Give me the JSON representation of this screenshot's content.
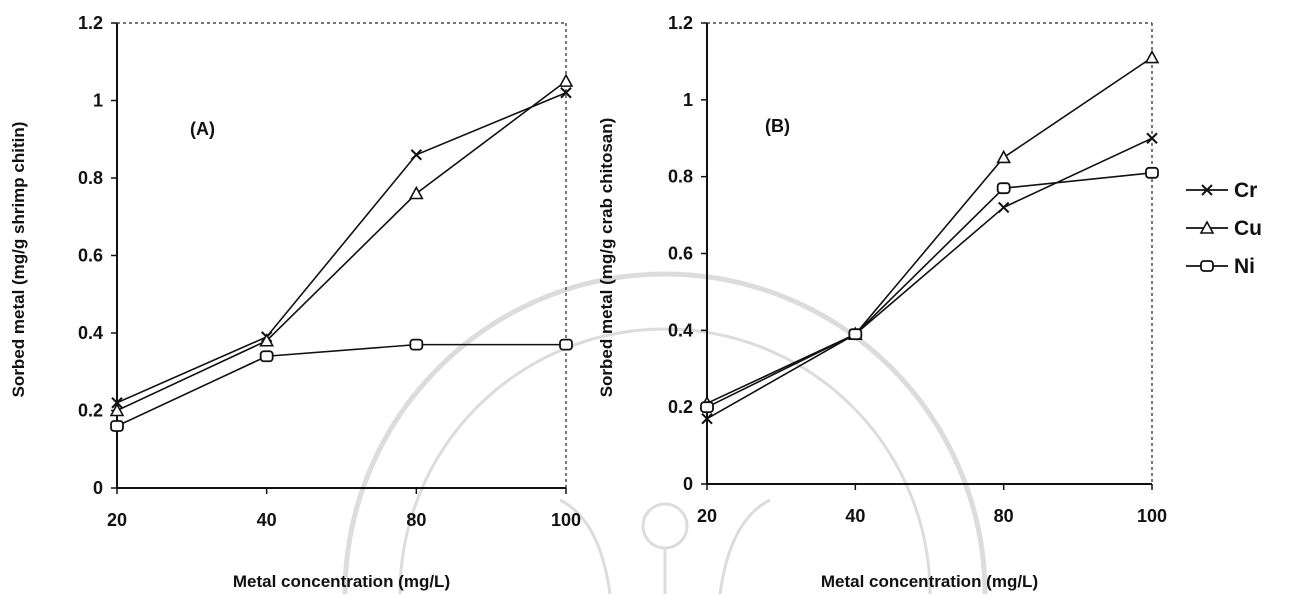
{
  "chart_data": [
    {
      "type": "line",
      "panel_label": "(A)",
      "xlabel": "Metal concentration (mg/L)",
      "ylabel": "Sorbed metal (mg/g shrimp chitin)",
      "categories": [
        "20",
        "40",
        "80",
        "100"
      ],
      "ylim": [
        0,
        1.2
      ],
      "yticks": [
        "0",
        "0.2",
        "0.4",
        "0.6",
        "0.8",
        "1",
        "1.2"
      ],
      "grid": false,
      "series": [
        {
          "name": "Cr",
          "marker": "x",
          "values": [
            0.22,
            0.39,
            0.86,
            1.02
          ]
        },
        {
          "name": "Cu",
          "marker": "triangle",
          "values": [
            0.2,
            0.38,
            0.76,
            1.05
          ]
        },
        {
          "name": "Ni",
          "marker": "square",
          "values": [
            0.16,
            0.34,
            0.37,
            0.37
          ]
        }
      ]
    },
    {
      "type": "line",
      "panel_label": "(B)",
      "xlabel": "Metal concentration (mg/L)",
      "ylabel": "Sorbed metal (mg/g crab chitosan)",
      "categories": [
        "20",
        "40",
        "80",
        "100"
      ],
      "ylim": [
        0,
        1.2
      ],
      "yticks": [
        "0",
        "0.2",
        "0.4",
        "0.6",
        "0.8",
        "1",
        "1.2"
      ],
      "grid": false,
      "series": [
        {
          "name": "Cr",
          "marker": "x",
          "values": [
            0.17,
            0.39,
            0.72,
            0.9
          ]
        },
        {
          "name": "Cu",
          "marker": "triangle",
          "values": [
            0.21,
            0.39,
            0.85,
            1.11
          ]
        },
        {
          "name": "Ni",
          "marker": "square",
          "values": [
            0.2,
            0.39,
            0.77,
            0.81
          ]
        }
      ]
    }
  ],
  "legend": {
    "placement": "right",
    "items": [
      {
        "name": "Cr",
        "marker": "x"
      },
      {
        "name": "Cu",
        "marker": "triangle"
      },
      {
        "name": "Ni",
        "marker": "square"
      }
    ]
  }
}
